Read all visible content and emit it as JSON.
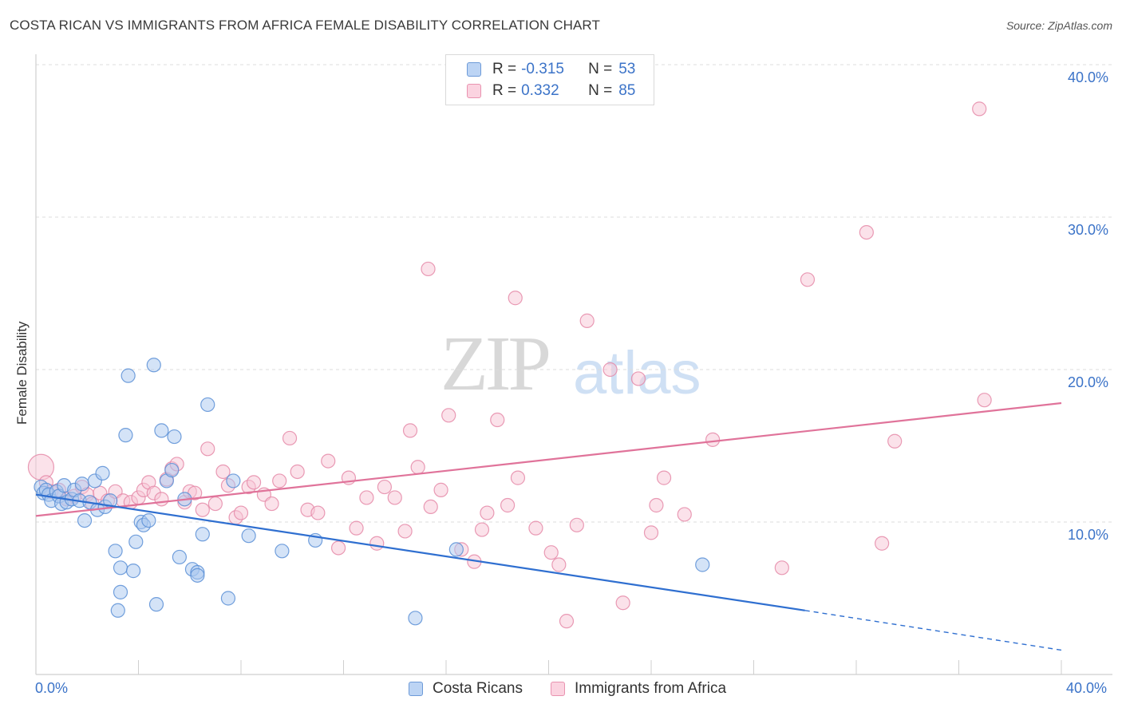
{
  "header": {
    "title": "COSTA RICAN VS IMMIGRANTS FROM AFRICA FEMALE DISABILITY CORRELATION CHART",
    "source": "Source: ZipAtlas.com"
  },
  "watermark": {
    "zip": "ZIP",
    "atlas": "atlas"
  },
  "legend_top": {
    "rows": [
      {
        "r_label": "R =",
        "r_value": "-0.315",
        "n_label": "N =",
        "n_value": "53"
      },
      {
        "r_label": "R =",
        "r_value": "0.332",
        "n_label": "N =",
        "n_value": "85"
      }
    ]
  },
  "legend_bottom": {
    "items": [
      "Costa Ricans",
      "Immigrants from Africa"
    ]
  },
  "colors": {
    "blue_fill": "#a9c8f0",
    "blue_stroke": "#5a8fd6",
    "blue_line": "#2f6fd0",
    "pink_fill": "#f8c6d6",
    "pink_stroke": "#e58aa8",
    "pink_line": "#e0739a",
    "grid": "#dcdcdc",
    "axis": "#cfcfcf",
    "tick_text": "#3b73c8"
  },
  "chart_data": {
    "type": "scatter",
    "title": "COSTA RICAN VS IMMIGRANTS FROM AFRICA FEMALE DISABILITY CORRELATION CHART",
    "xlabel": "",
    "ylabel": "Female Disability",
    "xlim": [
      0,
      40
    ],
    "ylim": [
      0,
      40
    ],
    "x_tick_labels": [
      "0.0%",
      "40.0%"
    ],
    "y_ticks": [
      10,
      20,
      30,
      40
    ],
    "y_tick_labels": [
      "10.0%",
      "20.0%",
      "30.0%",
      "40.0%"
    ],
    "grid": true,
    "legend_position": "bottom",
    "series": [
      {
        "name": "Costa Ricans",
        "color": "#a9c8f0",
        "r": -0.315,
        "n": 53,
        "trend": {
          "x0": 0,
          "y0": 11.8,
          "x1": 30,
          "y1": 4.2,
          "dashed_to_x": 40,
          "dashed_to_y": 1.6
        },
        "points": [
          [
            0.2,
            12.3
          ],
          [
            0.3,
            11.9
          ],
          [
            0.4,
            12.1
          ],
          [
            0.5,
            11.8
          ],
          [
            0.6,
            11.4
          ],
          [
            0.8,
            12.0
          ],
          [
            0.9,
            11.7
          ],
          [
            1.0,
            11.2
          ],
          [
            1.1,
            12.4
          ],
          [
            1.2,
            11.3
          ],
          [
            1.4,
            11.5
          ],
          [
            1.5,
            12.1
          ],
          [
            1.7,
            11.4
          ],
          [
            1.8,
            12.5
          ],
          [
            1.9,
            10.1
          ],
          [
            2.1,
            11.3
          ],
          [
            2.3,
            12.7
          ],
          [
            2.4,
            10.8
          ],
          [
            2.6,
            13.2
          ],
          [
            2.7,
            11.0
          ],
          [
            2.9,
            11.4
          ],
          [
            3.1,
            8.1
          ],
          [
            3.3,
            7.0
          ],
          [
            3.5,
            15.7
          ],
          [
            3.6,
            19.6
          ],
          [
            3.8,
            6.8
          ],
          [
            3.9,
            8.7
          ],
          [
            4.1,
            10.0
          ],
          [
            4.2,
            9.8
          ],
          [
            4.4,
            10.1
          ],
          [
            4.6,
            20.3
          ],
          [
            4.7,
            4.6
          ],
          [
            4.9,
            16.0
          ],
          [
            5.1,
            12.7
          ],
          [
            5.3,
            13.4
          ],
          [
            5.4,
            15.6
          ],
          [
            5.6,
            7.7
          ],
          [
            5.8,
            11.5
          ],
          [
            6.1,
            6.9
          ],
          [
            6.3,
            6.7
          ],
          [
            6.5,
            9.2
          ],
          [
            6.7,
            17.7
          ],
          [
            7.5,
            5.0
          ],
          [
            7.7,
            12.7
          ],
          [
            8.3,
            9.1
          ],
          [
            9.6,
            8.1
          ],
          [
            10.9,
            8.8
          ],
          [
            14.8,
            3.7
          ],
          [
            16.4,
            8.2
          ],
          [
            26.0,
            7.2
          ],
          [
            3.3,
            5.4
          ],
          [
            3.2,
            4.2
          ],
          [
            6.3,
            6.5
          ]
        ]
      },
      {
        "name": "Immigrants from Africa",
        "color": "#f8c6d6",
        "r": 0.332,
        "n": 85,
        "trend": {
          "x0": 0,
          "y0": 10.4,
          "x1": 40,
          "y1": 17.8
        },
        "points": [
          [
            0.2,
            13.6
          ],
          [
            0.4,
            12.6
          ],
          [
            0.6,
            12.0
          ],
          [
            0.9,
            12.1
          ],
          [
            1.2,
            11.5
          ],
          [
            1.5,
            11.7
          ],
          [
            1.8,
            12.3
          ],
          [
            2.0,
            11.8
          ],
          [
            2.2,
            11.2
          ],
          [
            2.5,
            11.9
          ],
          [
            2.8,
            11.4
          ],
          [
            3.1,
            12.0
          ],
          [
            3.4,
            11.4
          ],
          [
            3.7,
            11.3
          ],
          [
            4.0,
            11.6
          ],
          [
            4.2,
            12.1
          ],
          [
            4.4,
            12.6
          ],
          [
            4.6,
            11.9
          ],
          [
            4.9,
            11.5
          ],
          [
            5.1,
            12.8
          ],
          [
            5.3,
            13.5
          ],
          [
            5.5,
            13.8
          ],
          [
            5.8,
            11.3
          ],
          [
            6.0,
            12.0
          ],
          [
            6.2,
            11.9
          ],
          [
            6.5,
            10.8
          ],
          [
            6.7,
            14.8
          ],
          [
            7.0,
            11.2
          ],
          [
            7.3,
            13.3
          ],
          [
            7.5,
            12.4
          ],
          [
            7.8,
            10.3
          ],
          [
            8.0,
            10.6
          ],
          [
            8.3,
            12.3
          ],
          [
            8.5,
            12.6
          ],
          [
            8.9,
            11.8
          ],
          [
            9.2,
            11.2
          ],
          [
            9.5,
            12.7
          ],
          [
            9.9,
            15.5
          ],
          [
            10.2,
            13.3
          ],
          [
            10.6,
            10.8
          ],
          [
            11.0,
            10.6
          ],
          [
            11.4,
            14.0
          ],
          [
            11.8,
            8.3
          ],
          [
            12.2,
            12.9
          ],
          [
            12.5,
            9.6
          ],
          [
            12.9,
            11.6
          ],
          [
            13.3,
            8.6
          ],
          [
            13.6,
            12.3
          ],
          [
            14.0,
            11.6
          ],
          [
            14.4,
            9.4
          ],
          [
            14.6,
            16.0
          ],
          [
            14.9,
            13.6
          ],
          [
            15.4,
            11.0
          ],
          [
            15.3,
            26.6
          ],
          [
            15.8,
            12.1
          ],
          [
            16.1,
            17.0
          ],
          [
            16.6,
            8.2
          ],
          [
            17.1,
            7.4
          ],
          [
            17.4,
            9.5
          ],
          [
            17.6,
            10.6
          ],
          [
            18.0,
            16.7
          ],
          [
            18.4,
            11.1
          ],
          [
            18.7,
            24.7
          ],
          [
            18.8,
            12.9
          ],
          [
            19.5,
            9.6
          ],
          [
            20.1,
            8.0
          ],
          [
            20.4,
            7.2
          ],
          [
            20.7,
            3.5
          ],
          [
            21.1,
            9.8
          ],
          [
            21.5,
            23.2
          ],
          [
            22.4,
            20.0
          ],
          [
            22.9,
            4.7
          ],
          [
            23.5,
            19.4
          ],
          [
            24.0,
            9.3
          ],
          [
            24.2,
            11.1
          ],
          [
            24.5,
            12.9
          ],
          [
            25.3,
            10.5
          ],
          [
            26.4,
            15.4
          ],
          [
            29.1,
            7.0
          ],
          [
            30.1,
            25.9
          ],
          [
            32.4,
            29.0
          ],
          [
            33.0,
            8.6
          ],
          [
            33.5,
            15.3
          ],
          [
            36.8,
            37.1
          ],
          [
            37.0,
            18.0
          ]
        ]
      }
    ]
  },
  "axis": {
    "ylabel": "Female Disability"
  }
}
